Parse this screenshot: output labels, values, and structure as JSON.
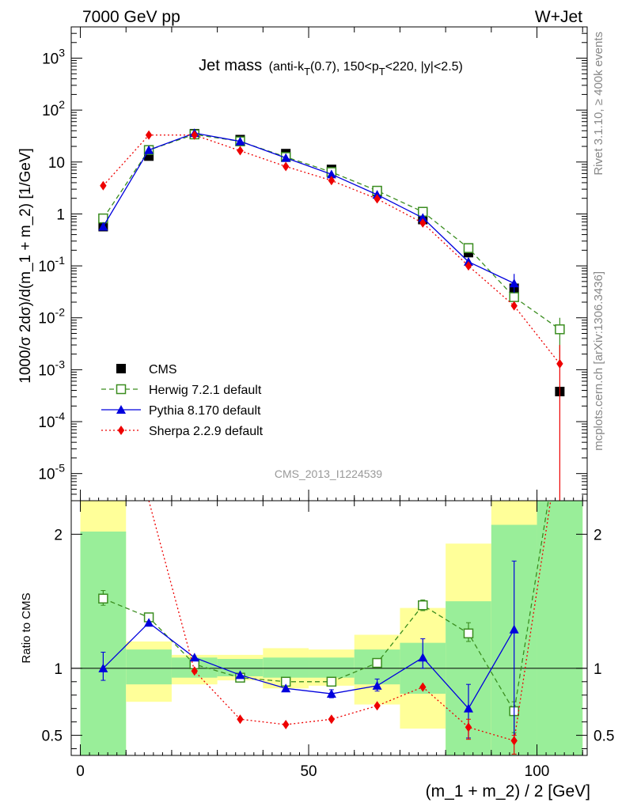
{
  "header": {
    "left": "7000 GeV pp",
    "right": "W+Jet"
  },
  "side_labels": {
    "rivet": "Rivet 3.1.10, ≥ 400k events",
    "mcplots": "mcplots.cern.ch [arXiv:1306.3436]"
  },
  "colors": {
    "cms": "#000000",
    "herwig": "#3a8d1f",
    "pythia": "#0000dd",
    "sherpa": "#ee0000",
    "band_green": "#99ee99",
    "band_yellow": "#ffff99"
  },
  "chart_data": [
    {
      "type": "scatter",
      "panel": "main",
      "title": {
        "main": "Jet mass",
        "sub_parts": [
          "(anti-k",
          "T",
          "(0.7), 150<p",
          "T",
          "<220, |y|<2.5)"
        ]
      },
      "ylabel": "1000/σ 2dσ)/d(m_1 + m_2) [1/GeV]",
      "yscale": "log",
      "ylim": [
        3e-06,
        4000
      ],
      "xlim": [
        -2,
        111
      ],
      "y_ticks": [
        "10^-5",
        "10^-4",
        "10^-3",
        "10^-2",
        "10^-1",
        "1",
        "10",
        "10^2",
        "10^3"
      ],
      "watermark": "CMS_2013_I1224539",
      "legend_position": "bottom-left",
      "series": [
        {
          "name": "CMS",
          "x": [
            5,
            15,
            25,
            35,
            45,
            55,
            65,
            75,
            85,
            95,
            105
          ],
          "values": [
            0.57,
            13,
            35,
            27,
            14.5,
            7.2,
            2.7,
            0.78,
            0.18,
            0.037,
            0.00038
          ]
        },
        {
          "name": "Herwig 7.2.1 default",
          "x": [
            5,
            15,
            25,
            35,
            45,
            55,
            65,
            75,
            85,
            95,
            105
          ],
          "values": [
            0.82,
            17,
            34,
            25,
            12.5,
            6.4,
            2.8,
            1.1,
            0.22,
            0.025,
            0.006
          ],
          "errors": [
            null,
            null,
            null,
            null,
            null,
            null,
            null,
            null,
            null,
            null,
            [
              0.0014,
              0.01
            ]
          ]
        },
        {
          "name": "Pythia 8.170 default",
          "x": [
            5,
            15,
            25,
            35,
            45,
            55,
            65,
            75,
            85,
            95
          ],
          "values": [
            0.57,
            17,
            36,
            25,
            12,
            5.8,
            2.35,
            0.84,
            0.12,
            0.046
          ],
          "errors": [
            null,
            null,
            null,
            null,
            null,
            null,
            null,
            null,
            null,
            [
              0.03,
              0.07
            ]
          ]
        },
        {
          "name": "Sherpa 2.2.9 default",
          "x": [
            5,
            15,
            25,
            35,
            45,
            55,
            65,
            75,
            85,
            95,
            105
          ],
          "values": [
            3.5,
            33,
            33,
            16.5,
            8.2,
            4.4,
            1.95,
            0.67,
            0.1,
            0.017,
            0.0013
          ],
          "errors": [
            null,
            null,
            null,
            null,
            null,
            null,
            null,
            null,
            null,
            null,
            [
              1e-07,
              0.003
            ]
          ]
        }
      ]
    },
    {
      "type": "line",
      "panel": "ratio",
      "ylabel": "Ratio to CMS",
      "xlabel": "(m_1 + m_2) / 2 [GeV]",
      "xlim": [
        -2,
        111
      ],
      "ylim": [
        0.35,
        2.25
      ],
      "x_ticks": [
        0,
        50,
        100
      ],
      "y_ticks": [
        0.5,
        1,
        2
      ],
      "bands": {
        "edges": [
          0,
          10,
          20,
          30,
          40,
          50,
          60,
          70,
          80,
          90,
          100,
          110
        ],
        "green": [
          [
            0,
            2.02
          ],
          [
            0.88,
            1.14
          ],
          [
            0.93,
            1.08
          ],
          [
            0.94,
            1.07
          ],
          [
            0.93,
            1.08
          ],
          [
            0.93,
            1.08
          ],
          [
            0.88,
            1.14
          ],
          [
            0.81,
            1.19
          ],
          [
            0.3,
            1.5
          ],
          [
            0.3,
            2.07
          ],
          [
            0.3,
            2.4
          ]
        ],
        "yellow": [
          [
            0,
            2.4
          ],
          [
            0.75,
            1.2
          ],
          [
            0.88,
            1.1
          ],
          [
            0.91,
            1.1
          ],
          [
            0.85,
            1.15
          ],
          [
            0.87,
            1.14
          ],
          [
            0.73,
            1.25
          ],
          [
            0.55,
            1.45
          ],
          [
            0.3,
            1.93
          ],
          [
            0.3,
            2.4
          ],
          [
            0.3,
            2.4
          ]
        ]
      },
      "series": [
        {
          "name": "Herwig 7.2.1 default",
          "x": [
            5,
            15,
            25,
            35,
            45,
            55,
            65,
            75,
            85,
            95,
            102.5
          ],
          "values": [
            1.52,
            1.38,
            1.03,
            0.93,
            0.9,
            0.9,
            1.04,
            1.47,
            1.26,
            0.68,
            2.4
          ],
          "errors": [
            [
              1.47,
              1.58
            ],
            null,
            null,
            null,
            null,
            null,
            null,
            [
              1.43,
              1.51
            ],
            [
              1.2,
              1.34
            ],
            [
              0.52,
              0.75
            ],
            null
          ]
        },
        {
          "name": "Pythia 8.170 default",
          "x": [
            5,
            15,
            25,
            35,
            45,
            55,
            65,
            75,
            85,
            95
          ],
          "values": [
            1,
            1.34,
            1.08,
            0.95,
            0.85,
            0.81,
            0.87,
            1.08,
            0.7,
            1.29
          ],
          "errors": [
            [
              0.91,
              1.12
            ],
            null,
            null,
            null,
            null,
            [
              0.78,
              0.84
            ],
            [
              0.83,
              0.92
            ],
            [
              1.0,
              1.22
            ],
            [
              0.48,
              0.88
            ],
            [
              0.47,
              1.8
            ]
          ]
        },
        {
          "name": "Sherpa 2.2.9 default",
          "x": [
            15,
            25,
            35,
            45,
            55,
            65,
            75,
            85,
            95,
            103
          ],
          "values": [
            2.4,
            0.98,
            0.62,
            0.58,
            0.62,
            0.72,
            0.86,
            0.56,
            0.46,
            2.4
          ],
          "errors": [
            null,
            null,
            null,
            null,
            null,
            null,
            null,
            [
              0.47,
              0.62
            ],
            [
              0.36,
              0.5
            ],
            null
          ]
        }
      ],
      "reference_line": 1
    }
  ]
}
